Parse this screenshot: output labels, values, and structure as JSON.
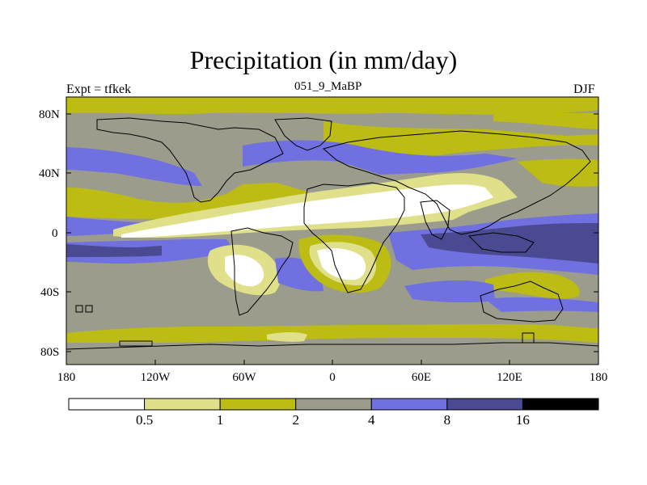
{
  "header": {
    "title": "Precipitation (in mm/day)",
    "left": "Expt = tfkek",
    "center": "051_9_MaBP",
    "right": "DJF"
  },
  "map": {
    "lat_ticks": [
      "80N",
      "40N",
      "0",
      "40S",
      "80S"
    ],
    "lon_ticks": [
      "180",
      "120W",
      "60W",
      "0",
      "60E",
      "120E",
      "180"
    ]
  },
  "legend": {
    "colors": [
      "#ffffff",
      "#e0e08a",
      "#bcbc14",
      "#9c9c8c",
      "#7070e0",
      "#4a4a92",
      "#000000"
    ],
    "labels": [
      "0.5",
      "1",
      "2",
      "4",
      "8",
      "16"
    ]
  }
}
